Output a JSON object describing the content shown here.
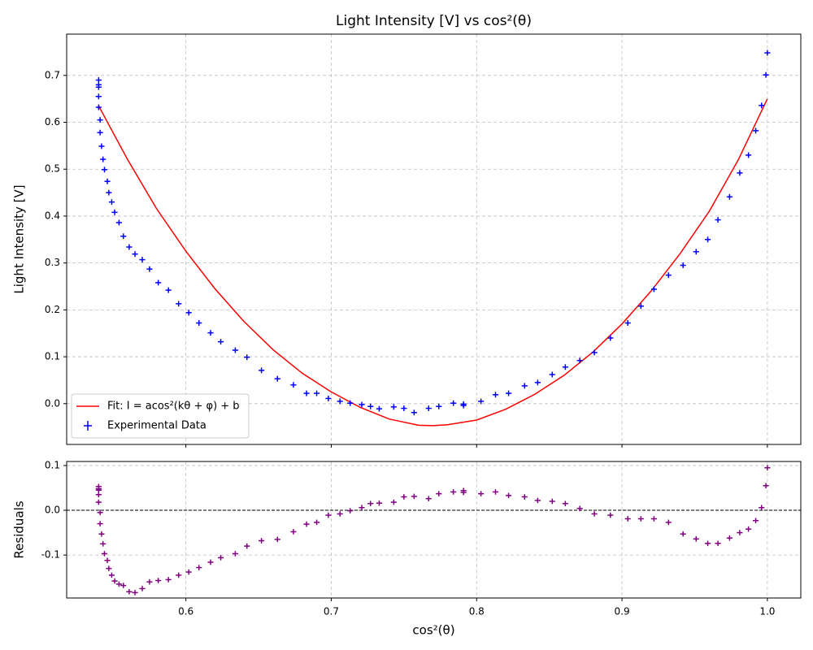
{
  "chart_data": [
    {
      "type": "scatter",
      "title": "Light Intensity [V] vs cos²(θ)",
      "ylabel": "Light Intensity [V]",
      "xlim": [
        0.518,
        1.023
      ],
      "ylim": [
        -0.087,
        0.788
      ],
      "xticks": [
        0.6,
        0.7,
        0.8,
        0.9,
        {
          "value": 1,
          "label": "1.0"
        }
      ],
      "yticks": [
        {
          "value": 0,
          "label": "0.0"
        },
        0.1,
        0.2,
        0.3,
        0.4,
        0.5,
        0.6,
        0.7
      ],
      "show_xtick_labels": false,
      "grid": true,
      "legend": "lower left",
      "series": [
        {
          "name": "Fit: I = acos²(kθ + φ) + b",
          "color": "#ff0000",
          "kind": "line",
          "x": [
            0.54,
            0.56,
            0.58,
            0.6,
            0.62,
            0.64,
            0.66,
            0.68,
            0.7,
            0.72,
            0.74,
            0.76,
            0.77,
            0.78,
            0.8,
            0.82,
            0.84,
            0.86,
            0.88,
            0.9,
            0.92,
            0.94,
            0.96,
            0.98,
            1.0
          ],
          "y": [
            0.635,
            0.52,
            0.415,
            0.325,
            0.245,
            0.175,
            0.115,
            0.065,
            0.025,
            -0.008,
            -0.033,
            -0.046,
            -0.047,
            -0.045,
            -0.035,
            -0.012,
            0.02,
            0.06,
            0.11,
            0.17,
            0.24,
            0.32,
            0.41,
            0.52,
            0.65
          ]
        },
        {
          "name": "Experimental Data",
          "color": "#0000ff",
          "kind": "errorbar",
          "xerr": 0.002,
          "yerr": 0.006,
          "x": [
            0.54,
            0.54,
            0.54,
            0.54,
            0.54,
            0.541,
            0.541,
            0.542,
            0.543,
            0.544,
            0.546,
            0.547,
            0.549,
            0.551,
            0.554,
            0.557,
            0.561,
            0.565,
            0.57,
            0.575,
            0.581,
            0.588,
            0.595,
            0.602,
            0.609,
            0.617,
            0.624,
            0.634,
            0.642,
            0.652,
            0.663,
            0.674,
            0.683,
            0.69,
            0.698,
            0.706,
            0.713,
            0.721,
            0.727,
            0.733,
            0.743,
            0.75,
            0.757,
            0.767,
            0.774,
            0.784,
            0.791,
            0.791,
            0.803,
            0.813,
            0.822,
            0.833,
            0.842,
            0.852,
            0.861,
            0.871,
            0.881,
            0.892,
            0.904,
            0.913,
            0.922,
            0.932,
            0.942,
            0.951,
            0.959,
            0.966,
            0.974,
            0.981,
            0.987,
            0.992,
            0.996,
            0.999,
            1.0
          ],
          "y": [
            0.69,
            0.68,
            0.675,
            0.655,
            0.632,
            0.605,
            0.578,
            0.549,
            0.521,
            0.499,
            0.474,
            0.45,
            0.43,
            0.408,
            0.386,
            0.357,
            0.334,
            0.319,
            0.307,
            0.287,
            0.258,
            0.242,
            0.213,
            0.194,
            0.172,
            0.151,
            0.132,
            0.114,
            0.099,
            0.071,
            0.053,
            0.04,
            0.022,
            0.022,
            0.011,
            0.005,
            0.001,
            -0.002,
            -0.006,
            -0.011,
            -0.007,
            -0.01,
            -0.019,
            -0.01,
            -0.006,
            0.001,
            -0.001,
            -0.004,
            0.005,
            0.019,
            0.022,
            0.038,
            0.045,
            0.062,
            0.078,
            0.092,
            0.109,
            0.14,
            0.172,
            0.208,
            0.244,
            0.274,
            0.295,
            0.324,
            0.35,
            0.392,
            0.441,
            0.492,
            0.53,
            0.582,
            0.636,
            0.701,
            0.748
          ]
        }
      ]
    },
    {
      "type": "scatter",
      "xlabel": "cos²(θ)",
      "ylabel": "Residuals",
      "xlim": [
        0.518,
        1.023
      ],
      "ylim": [
        -0.196,
        0.109
      ],
      "xticks": [
        0.6,
        0.7,
        0.8,
        0.9,
        {
          "value": 1,
          "label": "1.0"
        }
      ],
      "yticks": [
        -0.1,
        {
          "value": 0,
          "label": "0.0"
        },
        0.1
      ],
      "show_xtick_labels": true,
      "grid": true,
      "reference_line": 0,
      "series": [
        {
          "color": "#800080",
          "kind": "errorbar",
          "xerr": 0.002,
          "yerr": 0.006,
          "x": [
            0.54,
            0.54,
            0.54,
            0.54,
            0.54,
            0.541,
            0.541,
            0.542,
            0.543,
            0.544,
            0.546,
            0.547,
            0.549,
            0.551,
            0.554,
            0.557,
            0.561,
            0.565,
            0.57,
            0.575,
            0.581,
            0.588,
            0.595,
            0.602,
            0.609,
            0.617,
            0.624,
            0.634,
            0.642,
            0.652,
            0.663,
            0.674,
            0.683,
            0.69,
            0.698,
            0.706,
            0.713,
            0.721,
            0.727,
            0.733,
            0.743,
            0.75,
            0.757,
            0.767,
            0.774,
            0.784,
            0.791,
            0.791,
            0.803,
            0.813,
            0.822,
            0.833,
            0.842,
            0.852,
            0.861,
            0.871,
            0.881,
            0.892,
            0.904,
            0.913,
            0.922,
            0.932,
            0.942,
            0.951,
            0.959,
            0.966,
            0.974,
            0.981,
            0.987,
            0.992,
            0.996,
            0.999,
            1.0
          ],
          "y": [
            0.053,
            0.048,
            0.045,
            0.035,
            0.018,
            -0.005,
            -0.03,
            -0.053,
            -0.075,
            -0.097,
            -0.112,
            -0.13,
            -0.145,
            -0.158,
            -0.165,
            -0.168,
            -0.182,
            -0.184,
            -0.175,
            -0.16,
            -0.157,
            -0.155,
            -0.145,
            -0.138,
            -0.128,
            -0.116,
            -0.106,
            -0.097,
            -0.08,
            -0.068,
            -0.065,
            -0.048,
            -0.031,
            -0.027,
            -0.011,
            -0.008,
            -0.001,
            0.006,
            0.015,
            0.016,
            0.018,
            0.03,
            0.031,
            0.026,
            0.037,
            0.041,
            0.04,
            0.044,
            0.037,
            0.041,
            0.033,
            0.03,
            0.022,
            0.02,
            0.015,
            0.004,
            -0.008,
            -0.011,
            -0.019,
            -0.019,
            -0.019,
            -0.027,
            -0.053,
            -0.064,
            -0.074,
            -0.074,
            -0.062,
            -0.05,
            -0.042,
            -0.023,
            0.006,
            0.055,
            0.095
          ]
        }
      ]
    }
  ]
}
